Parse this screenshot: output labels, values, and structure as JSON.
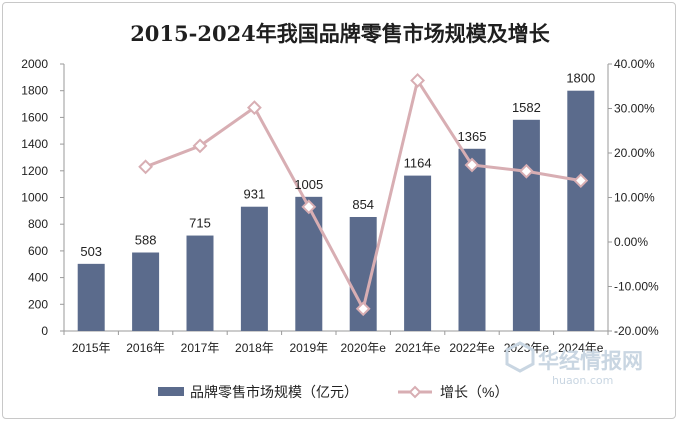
{
  "chart_data": {
    "type": "bar",
    "title": "2015-2024年我国品牌零售市场规模及增长",
    "categories": [
      "2015年",
      "2016年",
      "2017年",
      "2018年",
      "2019年",
      "2020年e",
      "2021年e",
      "2022年e",
      "2023年e",
      "2024年e"
    ],
    "series": [
      {
        "name": "品牌零售市场规模（亿元）",
        "type": "bar",
        "axis": "left",
        "color": "#5b6b8c",
        "values": [
          503,
          588,
          715,
          931,
          1005,
          854,
          1164,
          1365,
          1582,
          1800
        ],
        "labels": [
          "503",
          "588",
          "715",
          "931",
          "1005",
          "854",
          "1164",
          "1365",
          "1582",
          "1800"
        ]
      },
      {
        "name": "增长（%）",
        "type": "line",
        "axis": "right",
        "color": "#d8aeb3",
        "marker": "diamond",
        "values": [
          null,
          16.9,
          21.6,
          30.2,
          7.9,
          -15.0,
          36.3,
          17.3,
          15.9,
          13.8
        ]
      }
    ],
    "y_left": {
      "ylim": [
        0,
        2000
      ],
      "ticks": [
        "0",
        "200",
        "400",
        "600",
        "800",
        "1000",
        "1200",
        "1400",
        "1600",
        "1800",
        "2000"
      ]
    },
    "y_right": {
      "ylim": [
        -20,
        40
      ],
      "ticks": [
        "-20.00%",
        "-10.00%",
        "0.00%",
        "10.00%",
        "20.00%",
        "30.00%",
        "40.00%"
      ]
    },
    "grid": false,
    "legend_position": "bottom"
  },
  "watermark": {
    "text": "华经情报网",
    "sub": "huaon.com"
  }
}
